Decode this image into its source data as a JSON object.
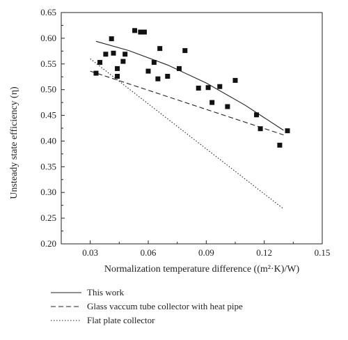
{
  "chart_data": {
    "type": "scatter",
    "xlabel": "Normalization temperature difference ((m²·K)/W)",
    "ylabel": "Unsteady state efficiency (η)",
    "xlim": [
      0.015,
      0.15
    ],
    "ylim": [
      0.2,
      0.65
    ],
    "x_ticks": [
      "0.03",
      "0.06",
      "0.09",
      "0.12",
      "0.15"
    ],
    "y_ticks": [
      "0.20",
      "0.25",
      "0.30",
      "0.35",
      "0.40",
      "0.45",
      "0.50",
      "0.55",
      "0.60",
      "0.65"
    ],
    "points": [
      {
        "x": 0.033,
        "y": 0.532
      },
      {
        "x": 0.035,
        "y": 0.553
      },
      {
        "x": 0.038,
        "y": 0.569
      },
      {
        "x": 0.041,
        "y": 0.599
      },
      {
        "x": 0.042,
        "y": 0.571
      },
      {
        "x": 0.044,
        "y": 0.541
      },
      {
        "x": 0.044,
        "y": 0.526
      },
      {
        "x": 0.047,
        "y": 0.555
      },
      {
        "x": 0.048,
        "y": 0.569
      },
      {
        "x": 0.053,
        "y": 0.615
      },
      {
        "x": 0.056,
        "y": 0.612
      },
      {
        "x": 0.058,
        "y": 0.612
      },
      {
        "x": 0.06,
        "y": 0.536
      },
      {
        "x": 0.063,
        "y": 0.553
      },
      {
        "x": 0.065,
        "y": 0.521
      },
      {
        "x": 0.066,
        "y": 0.58
      },
      {
        "x": 0.07,
        "y": 0.526
      },
      {
        "x": 0.076,
        "y": 0.541
      },
      {
        "x": 0.079,
        "y": 0.576
      },
      {
        "x": 0.086,
        "y": 0.503
      },
      {
        "x": 0.091,
        "y": 0.504
      },
      {
        "x": 0.093,
        "y": 0.475
      },
      {
        "x": 0.097,
        "y": 0.506
      },
      {
        "x": 0.101,
        "y": 0.467
      },
      {
        "x": 0.105,
        "y": 0.518
      },
      {
        "x": 0.116,
        "y": 0.451
      },
      {
        "x": 0.118,
        "y": 0.424
      },
      {
        "x": 0.128,
        "y": 0.392
      },
      {
        "x": 0.132,
        "y": 0.42
      }
    ],
    "series": [
      {
        "name": "This work",
        "style": "solid",
        "x": [
          0.033,
          0.05,
          0.07,
          0.09,
          0.11,
          0.13
        ],
        "y": [
          0.594,
          0.576,
          0.548,
          0.513,
          0.47,
          0.421
        ]
      },
      {
        "name": "Glass vaccum tube collector with heat pipe",
        "style": "dashed",
        "x": [
          0.03,
          0.13
        ],
        "y": [
          0.536,
          0.412
        ]
      },
      {
        "name": "Flat plate collector",
        "style": "dotted",
        "x": [
          0.03,
          0.13
        ],
        "y": [
          0.56,
          0.268
        ]
      }
    ],
    "legend": "bottom",
    "grid": false
  }
}
